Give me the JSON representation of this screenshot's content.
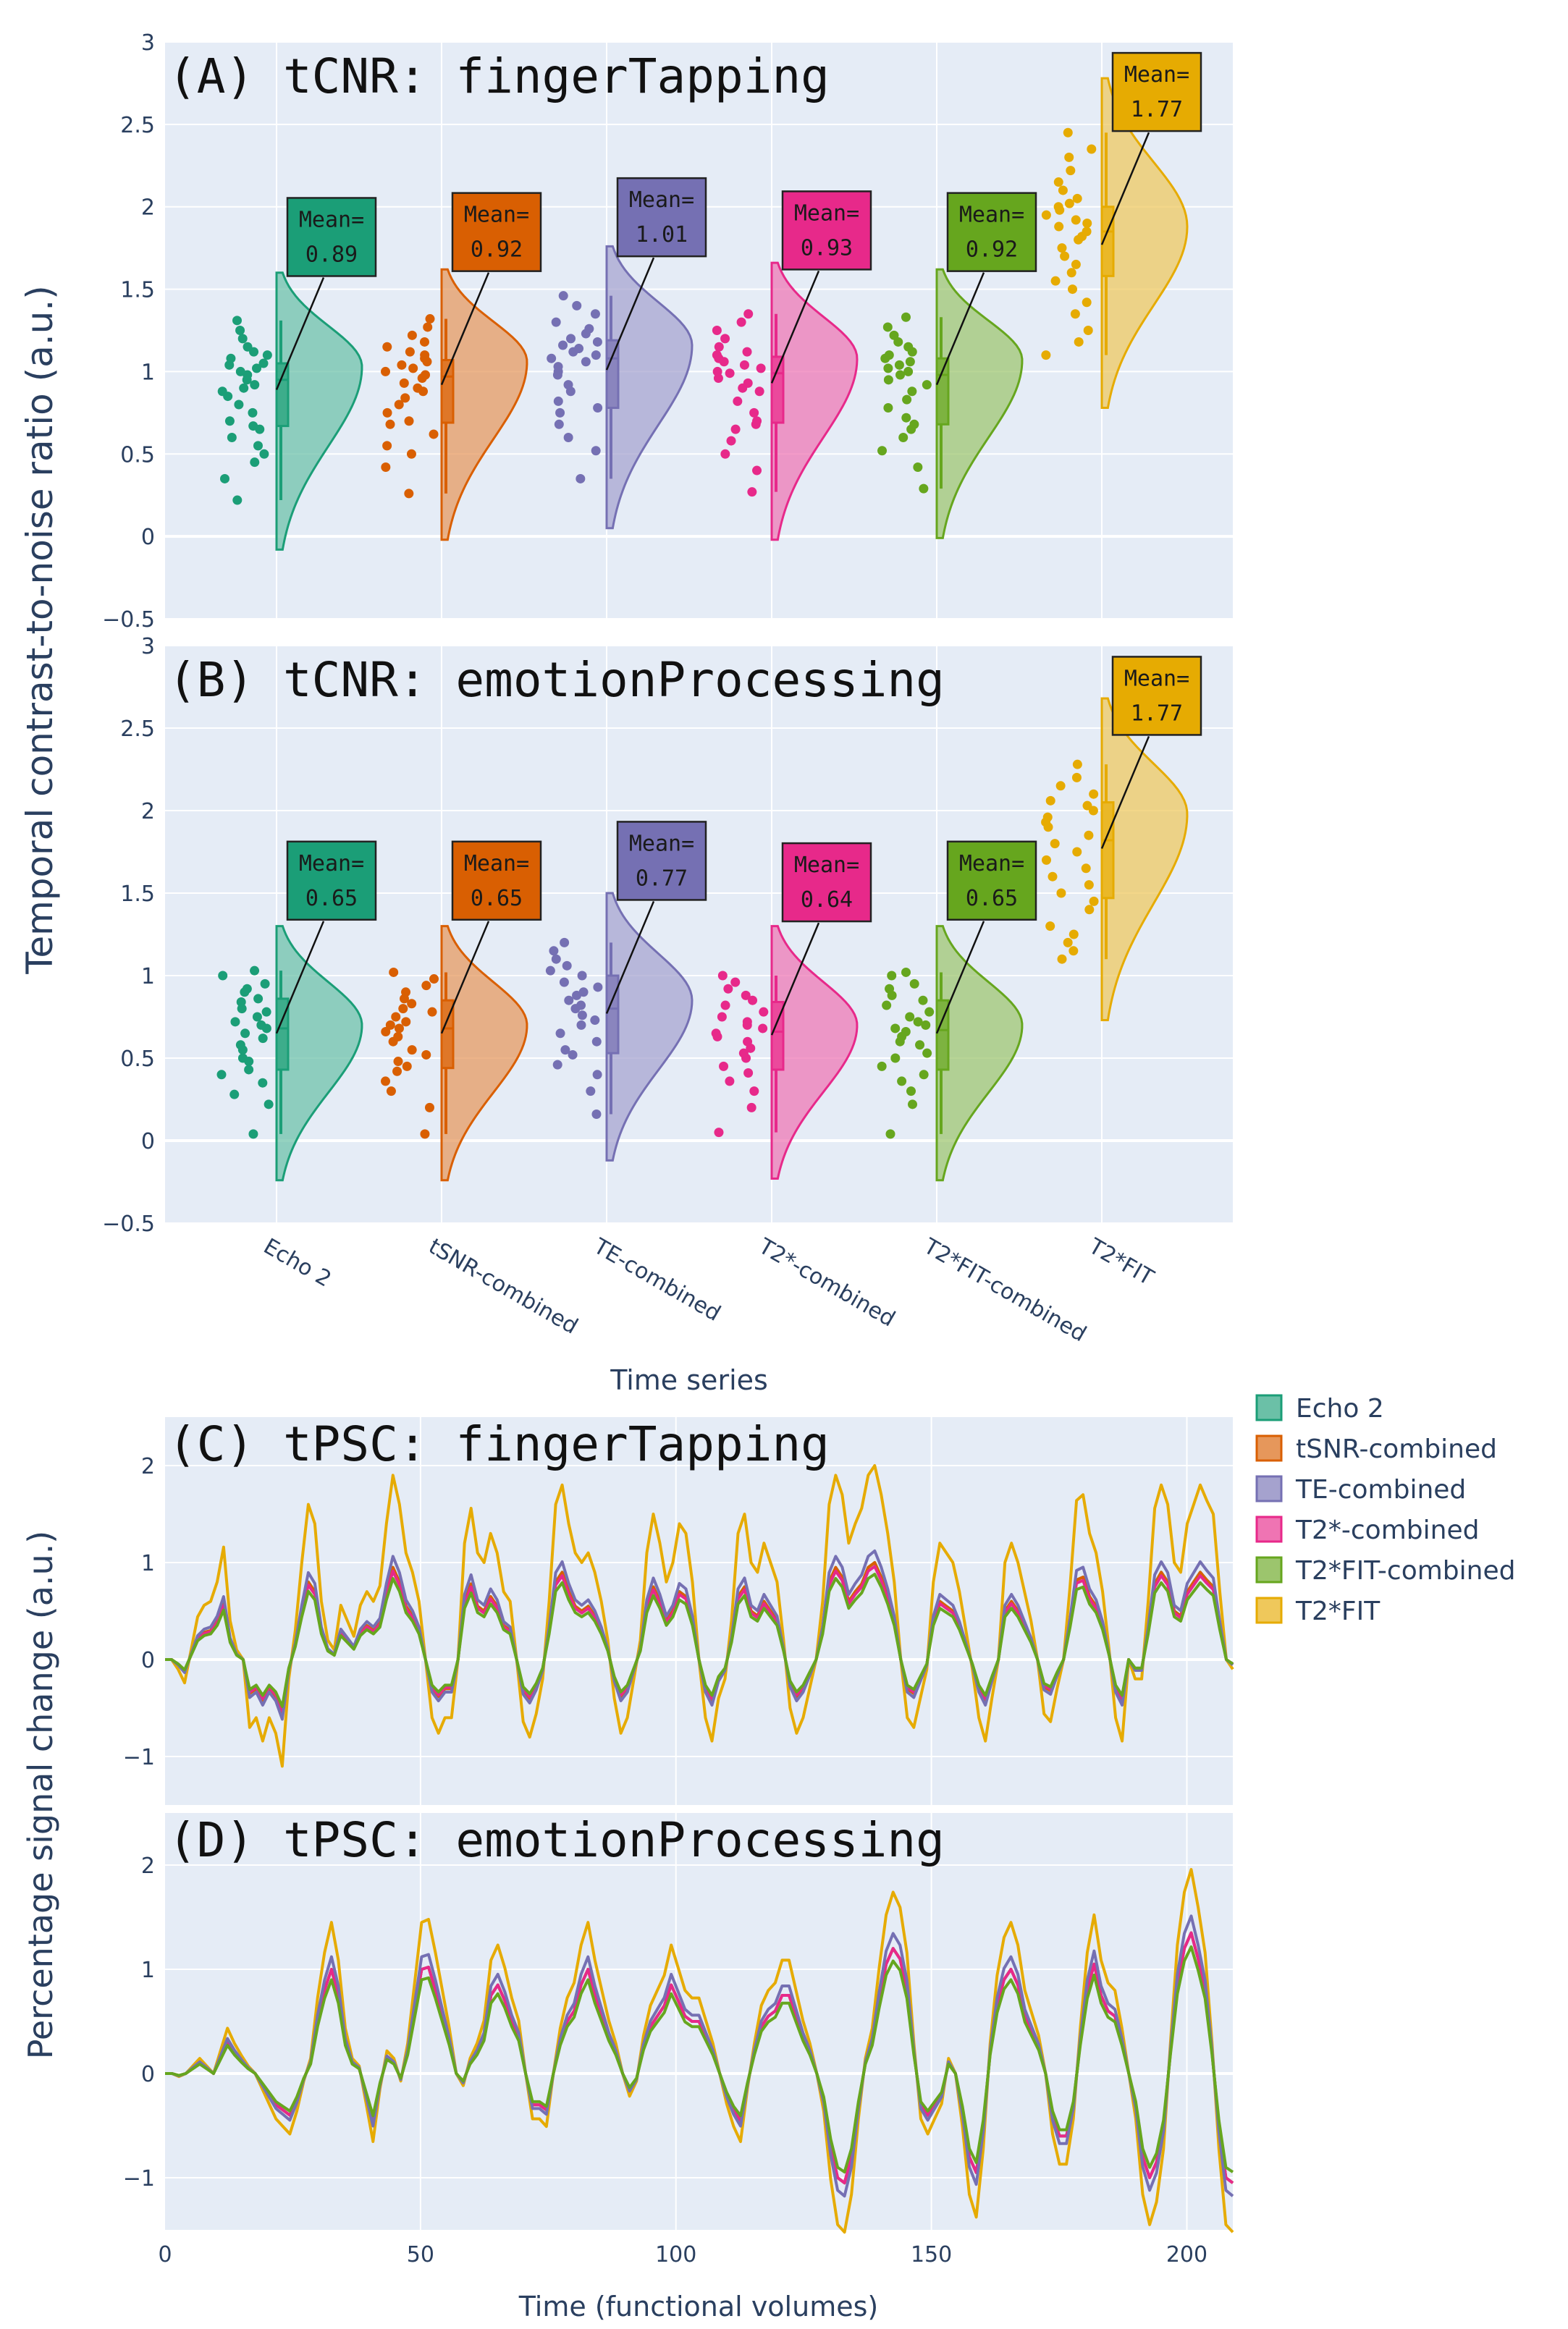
{
  "colors": {
    "Echo 2": "#1b9e77",
    "tSNR-combined": "#d95f02",
    "TE-combined": "#7570b3",
    "T2*-combined": "#e7298a",
    "T2*FIT-combined": "#66a61e",
    "T2*FIT": "#e6ab02"
  },
  "figure": {
    "ylabel_top": "Temporal contrast-to-noise ratio (a.u.)",
    "ylabel_bottom": "Percentage signal change  (a.u.)",
    "xlabel_top": "Time series",
    "xlabel_bottom": "Time (functional volumes)"
  },
  "chart_data": [
    {
      "id": "A",
      "type": "violin",
      "title": "(A) tCNR: fingerTapping",
      "ylim": [
        -0.5,
        3
      ],
      "yticks": [
        -0.5,
        0,
        0.5,
        1,
        1.5,
        2,
        2.5,
        3
      ],
      "ytick_labels": [
        "−0.5",
        "0",
        "0.5",
        "1",
        "1.5",
        "2",
        "2.5",
        "3"
      ],
      "categories": [
        "Echo 2",
        "tSNR-combined",
        "TE-combined",
        "T2*-combined",
        "T2*FIT-combined",
        "T2*FIT"
      ],
      "series": [
        {
          "name": "Echo 2",
          "mean": 0.89,
          "mean_label": "0.89",
          "q1": 0.67,
          "median": 0.95,
          "q3": 1.05,
          "whisker_low": 0.22,
          "whisker_high": 1.31,
          "violin": [
            -0.08,
            1.6
          ],
          "peak": 1.03,
          "points": [
            0.22,
            0.35,
            0.45,
            0.5,
            0.55,
            0.6,
            0.65,
            0.67,
            0.7,
            0.75,
            0.8,
            0.85,
            0.88,
            0.9,
            0.92,
            0.95,
            0.98,
            1.0,
            1.02,
            1.04,
            1.05,
            1.08,
            1.1,
            1.12,
            1.15,
            1.2,
            1.25,
            1.31
          ]
        },
        {
          "name": "tSNR-combined",
          "mean": 0.92,
          "mean_label": "0.92",
          "q1": 0.69,
          "median": 0.97,
          "q3": 1.07,
          "whisker_low": 0.26,
          "whisker_high": 1.32,
          "violin": [
            -0.02,
            1.62
          ],
          "peak": 1.06,
          "points": [
            0.26,
            0.42,
            0.5,
            0.55,
            0.62,
            0.68,
            0.7,
            0.75,
            0.8,
            0.84,
            0.88,
            0.9,
            0.93,
            0.96,
            0.98,
            1.0,
            1.02,
            1.04,
            1.06,
            1.08,
            1.1,
            1.12,
            1.15,
            1.18,
            1.22,
            1.27,
            1.32
          ]
        },
        {
          "name": "TE-combined",
          "mean": 1.01,
          "mean_label": "1.01",
          "q1": 0.78,
          "median": 1.08,
          "q3": 1.19,
          "whisker_low": 0.35,
          "whisker_high": 1.46,
          "violin": [
            0.05,
            1.76
          ],
          "peak": 1.16,
          "points": [
            0.35,
            0.52,
            0.6,
            0.68,
            0.75,
            0.78,
            0.82,
            0.88,
            0.92,
            0.98,
            1.0,
            1.03,
            1.06,
            1.08,
            1.1,
            1.12,
            1.14,
            1.16,
            1.18,
            1.2,
            1.23,
            1.26,
            1.3,
            1.35,
            1.4,
            1.46
          ]
        },
        {
          "name": "T2*-combined",
          "mean": 0.93,
          "mean_label": "0.93",
          "q1": 0.69,
          "median": 0.99,
          "q3": 1.09,
          "whisker_low": 0.27,
          "whisker_high": 1.35,
          "violin": [
            -0.02,
            1.66
          ],
          "peak": 1.08,
          "points": [
            0.27,
            0.4,
            0.5,
            0.58,
            0.65,
            0.68,
            0.7,
            0.75,
            0.82,
            0.88,
            0.9,
            0.93,
            0.96,
            0.99,
            1.0,
            1.02,
            1.04,
            1.06,
            1.08,
            1.1,
            1.12,
            1.15,
            1.2,
            1.25,
            1.3,
            1.35
          ]
        },
        {
          "name": "T2*FIT-combined",
          "mean": 0.92,
          "mean_label": "0.92",
          "q1": 0.68,
          "median": 0.98,
          "q3": 1.08,
          "whisker_low": 0.29,
          "whisker_high": 1.33,
          "violin": [
            -0.01,
            1.62
          ],
          "peak": 1.07,
          "points": [
            0.29,
            0.42,
            0.52,
            0.6,
            0.65,
            0.68,
            0.72,
            0.78,
            0.83,
            0.88,
            0.92,
            0.95,
            0.98,
            1.0,
            1.02,
            1.04,
            1.06,
            1.08,
            1.1,
            1.12,
            1.15,
            1.18,
            1.22,
            1.27,
            1.33
          ]
        },
        {
          "name": "T2*FIT",
          "mean": 1.77,
          "mean_label": "1.77",
          "q1": 1.58,
          "median": 1.85,
          "q3": 2.0,
          "whisker_low": 1.1,
          "whisker_high": 2.45,
          "violin": [
            0.78,
            2.78
          ],
          "peak": 1.88,
          "points": [
            1.1,
            1.18,
            1.25,
            1.35,
            1.42,
            1.5,
            1.55,
            1.6,
            1.65,
            1.7,
            1.75,
            1.8,
            1.82,
            1.85,
            1.88,
            1.9,
            1.92,
            1.95,
            1.98,
            2.0,
            2.02,
            2.05,
            2.1,
            2.15,
            2.22,
            2.3,
            2.35,
            2.45
          ]
        }
      ]
    },
    {
      "id": "B",
      "type": "violin",
      "title": "(B) tCNR: emotionProcessing",
      "ylim": [
        -0.5,
        3
      ],
      "yticks": [
        -0.5,
        0,
        0.5,
        1,
        1.5,
        2,
        2.5,
        3
      ],
      "ytick_labels": [
        "−0.5",
        "0",
        "0.5",
        "1",
        "1.5",
        "2",
        "2.5",
        "3"
      ],
      "categories": [
        "Echo 2",
        "tSNR-combined",
        "TE-combined",
        "T2*-combined",
        "T2*FIT-combined",
        "T2*FIT"
      ],
      "series": [
        {
          "name": "Echo 2",
          "mean": 0.65,
          "mean_label": "0.65",
          "q1": 0.43,
          "median": 0.68,
          "q3": 0.86,
          "whisker_low": 0.04,
          "whisker_high": 1.03,
          "violin": [
            -0.24,
            1.3
          ],
          "peak": 0.7,
          "points": [
            0.04,
            0.22,
            0.28,
            0.35,
            0.4,
            0.43,
            0.48,
            0.5,
            0.55,
            0.58,
            0.62,
            0.65,
            0.68,
            0.7,
            0.72,
            0.75,
            0.78,
            0.8,
            0.84,
            0.86,
            0.9,
            0.92,
            0.95,
            1.0,
            1.03
          ]
        },
        {
          "name": "tSNR-combined",
          "mean": 0.65,
          "mean_label": "0.65",
          "q1": 0.44,
          "median": 0.68,
          "q3": 0.85,
          "whisker_low": 0.04,
          "whisker_high": 1.02,
          "violin": [
            -0.24,
            1.3
          ],
          "peak": 0.7,
          "points": [
            0.04,
            0.2,
            0.3,
            0.36,
            0.42,
            0.45,
            0.48,
            0.52,
            0.55,
            0.6,
            0.63,
            0.66,
            0.68,
            0.7,
            0.72,
            0.75,
            0.78,
            0.8,
            0.83,
            0.86,
            0.9,
            0.94,
            0.98,
            1.02
          ]
        },
        {
          "name": "TE-combined",
          "mean": 0.77,
          "mean_label": "0.77",
          "q1": 0.53,
          "median": 0.8,
          "q3": 1.0,
          "whisker_low": 0.16,
          "whisker_high": 1.2,
          "violin": [
            -0.12,
            1.5
          ],
          "peak": 0.85,
          "points": [
            0.16,
            0.3,
            0.4,
            0.46,
            0.52,
            0.55,
            0.6,
            0.65,
            0.7,
            0.73,
            0.76,
            0.8,
            0.82,
            0.85,
            0.88,
            0.9,
            0.93,
            0.96,
            1.0,
            1.03,
            1.06,
            1.1,
            1.15,
            1.2
          ]
        },
        {
          "name": "T2*-combined",
          "mean": 0.64,
          "mean_label": "0.64",
          "q1": 0.43,
          "median": 0.66,
          "q3": 0.84,
          "whisker_low": 0.05,
          "whisker_high": 1.0,
          "violin": [
            -0.23,
            1.3
          ],
          "peak": 0.7,
          "points": [
            0.05,
            0.2,
            0.3,
            0.36,
            0.41,
            0.45,
            0.5,
            0.53,
            0.56,
            0.6,
            0.63,
            0.65,
            0.68,
            0.7,
            0.72,
            0.75,
            0.78,
            0.82,
            0.85,
            0.88,
            0.92,
            0.96,
            1.0
          ]
        },
        {
          "name": "T2*FIT-combined",
          "mean": 0.65,
          "mean_label": "0.65",
          "q1": 0.43,
          "median": 0.67,
          "q3": 0.85,
          "whisker_low": 0.04,
          "whisker_high": 1.02,
          "violin": [
            -0.24,
            1.3
          ],
          "peak": 0.7,
          "points": [
            0.04,
            0.22,
            0.3,
            0.36,
            0.4,
            0.45,
            0.5,
            0.53,
            0.58,
            0.6,
            0.63,
            0.66,
            0.68,
            0.7,
            0.72,
            0.75,
            0.78,
            0.82,
            0.85,
            0.88,
            0.92,
            0.95,
            1.0,
            1.02
          ]
        },
        {
          "name": "T2*FIT",
          "mean": 1.77,
          "mean_label": "1.77",
          "q1": 1.47,
          "median": 1.82,
          "q3": 2.05,
          "whisker_low": 1.1,
          "whisker_high": 2.28,
          "violin": [
            0.73,
            2.68
          ],
          "peak": 1.98,
          "points": [
            1.1,
            1.15,
            1.2,
            1.25,
            1.3,
            1.4,
            1.45,
            1.5,
            1.55,
            1.6,
            1.65,
            1.7,
            1.75,
            1.8,
            1.85,
            1.9,
            1.93,
            1.96,
            2.0,
            2.03,
            2.06,
            2.1,
            2.15,
            2.2,
            2.28
          ]
        }
      ]
    },
    {
      "id": "C",
      "type": "line",
      "title": "(C) tPSC: fingerTapping",
      "xlim": [
        0,
        209
      ],
      "ylim": [
        -1.5,
        2.5
      ],
      "yticks": [
        -1,
        0,
        1,
        2
      ],
      "ytick_labels": [
        "−1",
        "0",
        "1",
        "2"
      ],
      "x_start": 0,
      "scale": [
        1.0,
        1.0,
        1.12,
        0.96,
        0.88,
        2.0
      ],
      "base": [
        0.0,
        0.0,
        -0.05,
        -0.12,
        0.05,
        0.22,
        0.28,
        0.3,
        0.4,
        0.58,
        0.2,
        0.05,
        0.0,
        -0.35,
        -0.3,
        -0.42,
        -0.3,
        -0.38,
        -0.55,
        -0.1,
        0.15,
        0.5,
        0.8,
        0.7,
        0.3,
        0.1,
        0.05,
        0.28,
        0.2,
        0.12,
        0.28,
        0.35,
        0.3,
        0.38,
        0.7,
        0.95,
        0.8,
        0.55,
        0.45,
        0.3,
        0.0,
        -0.3,
        -0.38,
        -0.3,
        -0.3,
        0.0,
        0.6,
        0.78,
        0.55,
        0.5,
        0.65,
        0.55,
        0.35,
        0.3,
        0.0,
        -0.32,
        -0.4,
        -0.28,
        -0.1,
        0.3,
        0.8,
        0.9,
        0.7,
        0.55,
        0.5,
        0.55,
        0.45,
        0.3,
        0.1,
        -0.2,
        -0.38,
        -0.3,
        -0.1,
        0.1,
        0.55,
        0.75,
        0.6,
        0.4,
        0.5,
        0.7,
        0.65,
        0.4,
        0.0,
        -0.3,
        -0.42,
        -0.2,
        -0.1,
        0.2,
        0.65,
        0.75,
        0.5,
        0.45,
        0.6,
        0.5,
        0.4,
        0.1,
        -0.25,
        -0.38,
        -0.3,
        -0.15,
        0.0,
        0.3,
        0.8,
        0.95,
        0.85,
        0.6,
        0.7,
        0.78,
        0.95,
        1.0,
        0.85,
        0.65,
        0.4,
        0.0,
        -0.3,
        -0.35,
        -0.2,
        -0.05,
        0.4,
        0.6,
        0.55,
        0.5,
        0.35,
        0.15,
        -0.05,
        -0.3,
        -0.42,
        -0.2,
        0.0,
        0.5,
        0.6,
        0.5,
        0.35,
        0.2,
        0.0,
        -0.28,
        -0.32,
        -0.15,
        0.0,
        0.38,
        0.82,
        0.85,
        0.65,
        0.55,
        0.35,
        0.05,
        -0.3,
        -0.42,
        0.0,
        -0.1,
        -0.1,
        0.3,
        0.78,
        0.9,
        0.8,
        0.5,
        0.45,
        0.7,
        0.8,
        0.9,
        0.82,
        0.75,
        0.35,
        0.0,
        -0.05
      ]
    },
    {
      "id": "D",
      "type": "line",
      "title": "(D) tPSC: emotionProcessing",
      "xlim": [
        0,
        209
      ],
      "ylim": [
        -1.5,
        2.5
      ],
      "yticks": [
        -1,
        0,
        1,
        2
      ],
      "ytick_labels": [
        "−1",
        "0",
        "1",
        "2"
      ],
      "xticks": [
        0,
        50,
        100,
        150,
        200
      ],
      "xtick_labels": [
        "0",
        "50",
        "100",
        "150",
        "200"
      ],
      "x_start": 0,
      "scale": [
        1.0,
        1.0,
        1.12,
        1.0,
        0.9,
        1.45
      ],
      "base": [
        0.0,
        0.0,
        -0.02,
        0.0,
        0.05,
        0.1,
        0.05,
        0.0,
        0.15,
        0.3,
        0.2,
        0.12,
        0.05,
        0.0,
        -0.1,
        -0.2,
        -0.3,
        -0.35,
        -0.4,
        -0.25,
        -0.05,
        0.1,
        0.5,
        0.8,
        1.0,
        0.75,
        0.3,
        0.1,
        0.05,
        -0.2,
        -0.45,
        -0.1,
        0.15,
        0.1,
        -0.05,
        0.2,
        0.6,
        1.0,
        1.02,
        0.8,
        0.55,
        0.3,
        0.0,
        -0.08,
        0.1,
        0.2,
        0.35,
        0.75,
        0.85,
        0.7,
        0.5,
        0.35,
        0.0,
        -0.3,
        -0.3,
        -0.35,
        0.0,
        0.3,
        0.5,
        0.6,
        0.85,
        1.0,
        0.75,
        0.55,
        0.35,
        0.2,
        0.0,
        -0.15,
        -0.05,
        0.25,
        0.45,
        0.55,
        0.65,
        0.85,
        0.7,
        0.55,
        0.5,
        0.5,
        0.35,
        0.2,
        0.0,
        -0.2,
        -0.35,
        -0.45,
        -0.1,
        0.2,
        0.45,
        0.55,
        0.6,
        0.75,
        0.75,
        0.55,
        0.35,
        0.2,
        0.0,
        -0.25,
        -0.7,
        -1.0,
        -1.05,
        -0.8,
        -0.3,
        0.1,
        0.3,
        0.7,
        1.05,
        1.2,
        1.1,
        0.8,
        0.2,
        -0.3,
        -0.4,
        -0.3,
        -0.2,
        0.1,
        0.0,
        -0.35,
        -0.8,
        -0.95,
        -0.5,
        0.2,
        0.65,
        0.9,
        1.0,
        0.85,
        0.55,
        0.4,
        0.25,
        0.0,
        -0.4,
        -0.6,
        -0.6,
        -0.3,
        0.3,
        0.8,
        1.05,
        0.75,
        0.6,
        0.55,
        0.3,
        0.0,
        -0.3,
        -0.8,
        -1.0,
        -0.85,
        -0.5,
        0.2,
        0.85,
        1.2,
        1.35,
        1.1,
        0.8,
        0.2,
        -0.5,
        -1.0,
        -1.05
      ]
    }
  ],
  "legend": {
    "placement": "right",
    "items": [
      "Echo 2",
      "tSNR-combined",
      "TE-combined",
      "T2*-combined",
      "T2*FIT-combined",
      "T2*FIT"
    ]
  }
}
